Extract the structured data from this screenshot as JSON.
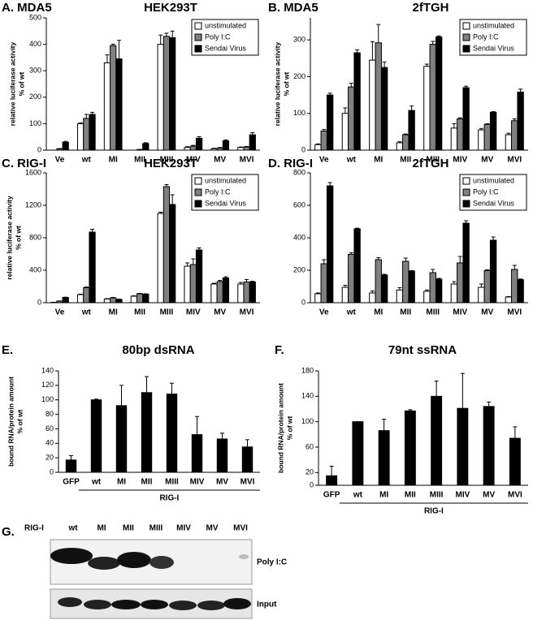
{
  "chart_data": [
    {
      "type": "bar",
      "panel_label": "A. MDA5",
      "title": "HEK293T",
      "ylabel": [
        "relative luciferase activity",
        "% of wt"
      ],
      "categories": [
        "Ve",
        "wt",
        "MI",
        "MII",
        "MIII",
        "MIV",
        "MV",
        "MVI"
      ],
      "series": [
        {
          "name": "unstimulated",
          "color": "#ffffff",
          "values": [
            0,
            100,
            330,
            0,
            400,
            10,
            5,
            10
          ],
          "errors": [
            0,
            3,
            30,
            0,
            35,
            3,
            2,
            2
          ]
        },
        {
          "name": "Poly I:C",
          "color": "#808080",
          "values": [
            5,
            120,
            395,
            2,
            430,
            15,
            8,
            12
          ],
          "errors": [
            1,
            15,
            5,
            1,
            12,
            3,
            2,
            2
          ]
        },
        {
          "name": "Sendai Virus",
          "color": "#000000",
          "values": [
            30,
            135,
            345,
            25,
            425,
            45,
            35,
            58
          ],
          "errors": [
            3,
            8,
            70,
            3,
            25,
            6,
            4,
            8
          ]
        }
      ],
      "ylim": [
        0,
        500
      ],
      "yticks": [
        0,
        100,
        200,
        300,
        400,
        500
      ],
      "legend": "upper right"
    },
    {
      "type": "bar",
      "panel_label": "B. MDA5",
      "title": "2fTGH",
      "ylabel": [
        "relative luciferase activity",
        "% of wt"
      ],
      "categories": [
        "Ve",
        "wt",
        "MI",
        "MII",
        "MIII",
        "MIV",
        "MV",
        "MVI"
      ],
      "series": [
        {
          "name": "unstimulated",
          "color": "#ffffff",
          "values": [
            15,
            100,
            245,
            20,
            228,
            60,
            55,
            42
          ],
          "errors": [
            2,
            15,
            50,
            3,
            6,
            12,
            4,
            4
          ]
        },
        {
          "name": "Poly I:C",
          "color": "#808080",
          "values": [
            52,
            172,
            292,
            42,
            288,
            85,
            70,
            80
          ],
          "errors": [
            4,
            10,
            50,
            2,
            8,
            3,
            2,
            5
          ]
        },
        {
          "name": "Sendai Virus",
          "color": "#000000",
          "values": [
            150,
            265,
            225,
            108,
            308,
            170,
            103,
            158
          ],
          "errors": [
            5,
            8,
            15,
            12,
            3,
            4,
            2,
            8
          ]
        }
      ],
      "ylim": [
        0,
        360
      ],
      "yticks": [
        0,
        100,
        200,
        300
      ],
      "legend": "upper right"
    },
    {
      "type": "bar",
      "panel_label": "C. RIG-I",
      "title": "HEK293T",
      "ylabel": [
        "relative luciferase activity",
        "% of wt"
      ],
      "categories": [
        "Ve",
        "wt",
        "MI",
        "MII",
        "MIII",
        "MIV",
        "MV",
        "MVI"
      ],
      "series": [
        {
          "name": "unstimulated",
          "color": "#ffffff",
          "values": [
            5,
            100,
            45,
            80,
            1100,
            450,
            230,
            230
          ],
          "errors": [
            1,
            5,
            5,
            5,
            15,
            40,
            10,
            20
          ]
        },
        {
          "name": "Poly I:C",
          "color": "#808080",
          "values": [
            20,
            185,
            60,
            110,
            1430,
            470,
            260,
            255
          ],
          "errors": [
            2,
            8,
            5,
            5,
            25,
            70,
            15,
            30
          ]
        },
        {
          "name": "Sendai Virus",
          "color": "#000000",
          "values": [
            65,
            870,
            40,
            105,
            1210,
            650,
            305,
            255
          ],
          "errors": [
            3,
            35,
            4,
            5,
            120,
            25,
            15,
            10
          ]
        }
      ],
      "ylim": [
        0,
        1600
      ],
      "yticks": [
        0,
        400,
        800,
        1200,
        1600
      ],
      "legend": "upper right"
    },
    {
      "type": "bar",
      "panel_label": "D. RIG-I",
      "title": "2fTGH",
      "categories": [
        "Ve",
        "wt",
        "MI",
        "MII",
        "MIII",
        "MIV",
        "MV",
        "MVI"
      ],
      "series": [
        {
          "name": "unstimulated",
          "color": "#ffffff",
          "values": [
            55,
            95,
            60,
            78,
            70,
            115,
            95,
            35
          ],
          "errors": [
            5,
            12,
            12,
            15,
            8,
            15,
            20,
            3
          ]
        },
        {
          "name": "Poly I:C",
          "color": "#808080",
          "values": [
            240,
            298,
            265,
            255,
            185,
            245,
            198,
            205
          ],
          "errors": [
            25,
            10,
            12,
            20,
            20,
            40,
            5,
            25
          ]
        },
        {
          "name": "Sendai Virus",
          "color": "#000000",
          "values": [
            720,
            455,
            170,
            195,
            145,
            490,
            385,
            142
          ],
          "errors": [
            20,
            4,
            5,
            3,
            5,
            15,
            20,
            4
          ]
        }
      ],
      "ylim": [
        0,
        800
      ],
      "yticks": [
        0,
        200,
        400,
        600,
        800
      ],
      "legend": "upper right"
    },
    {
      "type": "bar",
      "panel_label": "E.",
      "title": "80bp dsRNA",
      "ylabel": [
        "bound RNA/protein amount",
        "% of wt"
      ],
      "categories": [
        "GFP",
        "wt",
        "MI",
        "MII",
        "MIII",
        "MIV",
        "MV",
        "MVI"
      ],
      "color": "#000000",
      "values": [
        17,
        100,
        92,
        110,
        108,
        52,
        46,
        35
      ],
      "errors": [
        6,
        1,
        28,
        22,
        15,
        25,
        8,
        10
      ],
      "ylim": [
        0,
        140
      ],
      "yticks": [
        0,
        20,
        40,
        60,
        80,
        100,
        120,
        140
      ],
      "group_label": "RIG-I"
    },
    {
      "type": "bar",
      "panel_label": "F.",
      "title": "79nt ssRNA",
      "ylabel": [
        "bound RNA/protein amount",
        "% of wt"
      ],
      "categories": [
        "GFP",
        "wt",
        "MI",
        "MII",
        "MIII",
        "MIV",
        "MV",
        "MVI"
      ],
      "color": "#000000",
      "values": [
        15,
        100,
        86,
        117,
        140,
        121,
        124,
        74
      ],
      "errors": [
        15,
        0,
        18,
        2,
        24,
        55,
        7,
        18
      ],
      "ylim": [
        0,
        180
      ],
      "yticks": [
        0,
        20,
        60,
        100,
        140,
        180
      ],
      "group_label": "RIG-I"
    }
  ],
  "gel": {
    "panel_label": "G.",
    "row_label": "RIG-I",
    "lanes": [
      "wt",
      "MI",
      "MII",
      "MIII",
      "MIV",
      "MV",
      "MVI"
    ],
    "blots": [
      "Poly I:C",
      "Input"
    ]
  }
}
